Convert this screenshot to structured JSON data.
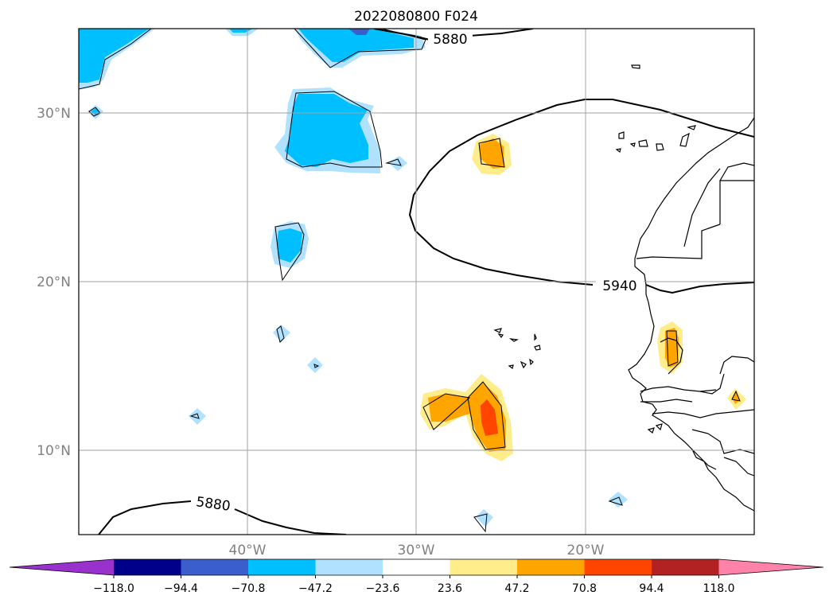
{
  "title": "2022080800 F024",
  "x_tick_labels": [
    "40°W",
    "30°W",
    "20°W"
  ],
  "y_tick_labels": [
    "30°N",
    "20°N",
    "10°N"
  ],
  "contour_labels": [
    "5880",
    "5940",
    "5880"
  ],
  "colorbar": {
    "tick_labels": [
      "−118.0",
      "−94.4",
      "−70.8",
      "−47.2",
      "−23.6",
      "23.6",
      "47.2",
      "70.8",
      "94.4",
      "118.0"
    ],
    "colors": [
      "#9932cc",
      "#00008b",
      "#3a5fcd",
      "#00bfff",
      "#b0e2ff",
      "#ffffff",
      "#ffec8b",
      "#ffa500",
      "#ff4500",
      "#b22222",
      "#ff82ab"
    ]
  }
}
